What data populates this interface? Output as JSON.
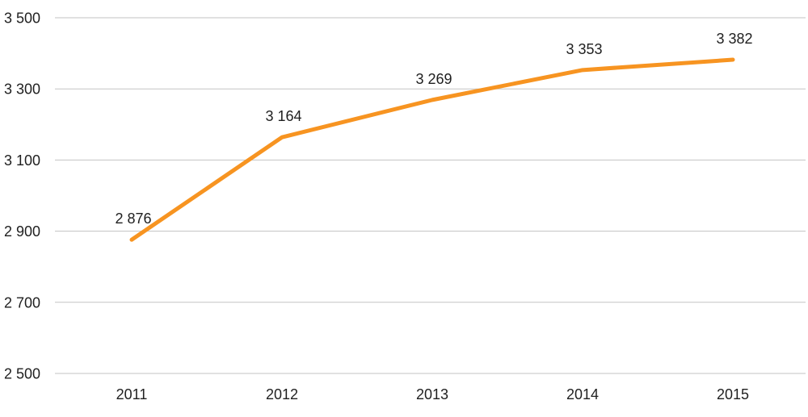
{
  "chart_data": {
    "type": "line",
    "title": "",
    "xlabel": "",
    "ylabel": "",
    "categories": [
      "2011",
      "2012",
      "2013",
      "2014",
      "2015"
    ],
    "series": [
      {
        "name": "series-1",
        "values": [
          2876,
          3164,
          3269,
          3353,
          3382
        ],
        "point_labels": [
          "2 876",
          "3 164",
          "3 269",
          "3 353",
          "3 382"
        ],
        "color": "#F79421"
      }
    ],
    "ylim": [
      2500,
      3500
    ],
    "y_ticks": [
      {
        "value": 3500,
        "label": "3 500"
      },
      {
        "value": 3300,
        "label": "3 300"
      },
      {
        "value": 3100,
        "label": "3 100"
      },
      {
        "value": 2900,
        "label": "2 900"
      },
      {
        "value": 2700,
        "label": "2 700"
      },
      {
        "value": 2500,
        "label": "2 500"
      }
    ],
    "grid": true,
    "legend_position": "none",
    "colors": {
      "line": "#F79421",
      "gridline": "#C3C3C3",
      "text": "#1F1F1F",
      "background": "#FFFFFF"
    }
  }
}
